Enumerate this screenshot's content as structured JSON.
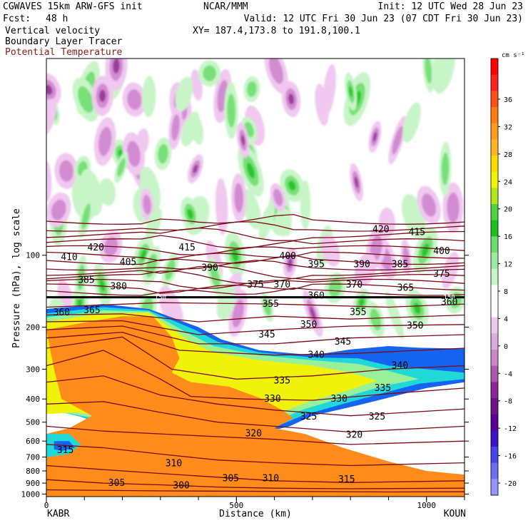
{
  "header": {
    "model": "CGWAVES 15km ARW-GFS init",
    "org": "NCAR/MMM",
    "init": "Init: 12 UTC Wed 28 Jun 23",
    "fcst_label": "Fcst:",
    "fcst_value": "48 h",
    "valid": "Valid: 12 UTC Fri 30 Jun 23 (07 CDT Fri 30 Jun 23)",
    "line_vertical_velocity": "Vertical velocity",
    "line_tracer": "Boundary Layer Tracer",
    "line_theta": "Potential Temperature",
    "xy": "XY= 187.4,173.8 to 191.8,100.1"
  },
  "colors": {
    "theta": "#7a0a14",
    "theta_label": "#8b1a1a",
    "tracer_orange": "#ff8c1a",
    "tracer_yellow": "#f0f20a",
    "tracer_green": "#98f098",
    "tracer_cyan": "#20d8d8",
    "tracer_blue": "#1464f0",
    "up_light": "#c8f5c8",
    "up_mid": "#78e078",
    "up_strong": "#28c828",
    "down_light": "#f0c8f0",
    "down_mid": "#d28cd2",
    "down_strong": "#9b3c9b"
  },
  "chart_data": {
    "type": "heatmap",
    "title": "Vertical velocity; Boundary Layer Tracer; Potential Temperature",
    "xlabel": "Distance (km)",
    "ylabel": "Pressure (hPa), log scale",
    "x_range_km": [
      0,
      1100
    ],
    "x_ticks": [
      0,
      500,
      1000
    ],
    "x_tick_labels": [
      "0",
      "500",
      "1000"
    ],
    "y_range_hpa": [
      1025,
      15
    ],
    "y_scale": "log",
    "y_ticks": [
      100,
      200,
      300,
      400,
      500,
      600,
      700,
      800,
      900,
      1000
    ],
    "y_tick_labels": [
      "100",
      "200",
      "300",
      "400",
      "500",
      "600",
      "700",
      "800",
      "900",
      "1000"
    ],
    "left_station": "KABR",
    "right_station": "KOUN",
    "colorbar": {
      "units": "cm s⁻¹",
      "tick_labels": [
        "36",
        "32",
        "28",
        "24",
        "20",
        "16",
        "12",
        "8",
        "4",
        "0",
        "-4",
        "-8",
        "-12",
        "-16",
        "-20"
      ],
      "colors": [
        "#ff0000",
        "#ff2020",
        "#ff5014",
        "#ff7a14",
        "#ff9a1e",
        "#ffb428",
        "#ffdc00",
        "#f0f20a",
        "#b4e61e",
        "#50d23c",
        "#1ebe1e",
        "#6edc6e",
        "#a0e8a0",
        "#c8f5c8",
        "#ffffff",
        "#ffffff",
        "#ecc8ec",
        "#dcaadc",
        "#c888c8",
        "#aa5aaa",
        "#8c2896",
        "#6e1488",
        "#5a0096",
        "#3c14c8",
        "#4646e6",
        "#6e6ef0",
        "#9696f8"
      ]
    },
    "tropopause_marker_hpa": 150,
    "tropopause_label": "150",
    "theta_contour_labels": [
      {
        "text": "420",
        "x_km": 130,
        "p_hpa": 93
      },
      {
        "text": "410",
        "x_km": 60,
        "p_hpa": 102
      },
      {
        "text": "405",
        "x_km": 215,
        "p_hpa": 107
      },
      {
        "text": "415",
        "x_km": 370,
        "p_hpa": 93
      },
      {
        "text": "385",
        "x_km": 105,
        "p_hpa": 127
      },
      {
        "text": "380",
        "x_km": 190,
        "p_hpa": 135
      },
      {
        "text": "390",
        "x_km": 430,
        "p_hpa": 113
      },
      {
        "text": "400",
        "x_km": 635,
        "p_hpa": 101
      },
      {
        "text": "395",
        "x_km": 710,
        "p_hpa": 109
      },
      {
        "text": "390",
        "x_km": 830,
        "p_hpa": 109
      },
      {
        "text": "385",
        "x_km": 930,
        "p_hpa": 109
      },
      {
        "text": "420",
        "x_km": 880,
        "p_hpa": 78
      },
      {
        "text": "415",
        "x_km": 975,
        "p_hpa": 80
      },
      {
        "text": "400",
        "x_km": 1040,
        "p_hpa": 96
      },
      {
        "text": "375",
        "x_km": 1040,
        "p_hpa": 120
      },
      {
        "text": "375",
        "x_km": 550,
        "p_hpa": 133
      },
      {
        "text": "370",
        "x_km": 620,
        "p_hpa": 133
      },
      {
        "text": "370",
        "x_km": 810,
        "p_hpa": 133
      },
      {
        "text": "365",
        "x_km": 945,
        "p_hpa": 137
      },
      {
        "text": "360",
        "x_km": 40,
        "p_hpa": 174
      },
      {
        "text": "365",
        "x_km": 120,
        "p_hpa": 170
      },
      {
        "text": "355",
        "x_km": 590,
        "p_hpa": 160
      },
      {
        "text": "360",
        "x_km": 710,
        "p_hpa": 148
      },
      {
        "text": "355",
        "x_km": 820,
        "p_hpa": 173
      },
      {
        "text": "360",
        "x_km": 1060,
        "p_hpa": 157
      },
      {
        "text": "350",
        "x_km": 690,
        "p_hpa": 195
      },
      {
        "text": "350",
        "x_km": 970,
        "p_hpa": 197
      },
      {
        "text": "345",
        "x_km": 580,
        "p_hpa": 215
      },
      {
        "text": "345",
        "x_km": 780,
        "p_hpa": 230
      },
      {
        "text": "340",
        "x_km": 710,
        "p_hpa": 262
      },
      {
        "text": "340",
        "x_km": 930,
        "p_hpa": 290
      },
      {
        "text": "335",
        "x_km": 620,
        "p_hpa": 335
      },
      {
        "text": "335",
        "x_km": 885,
        "p_hpa": 360
      },
      {
        "text": "330",
        "x_km": 595,
        "p_hpa": 400
      },
      {
        "text": "330",
        "x_km": 770,
        "p_hpa": 400
      },
      {
        "text": "325",
        "x_km": 690,
        "p_hpa": 475
      },
      {
        "text": "325",
        "x_km": 870,
        "p_hpa": 475
      },
      {
        "text": "320",
        "x_km": 545,
        "p_hpa": 558
      },
      {
        "text": "320",
        "x_km": 810,
        "p_hpa": 565
      },
      {
        "text": "315",
        "x_km": 50,
        "p_hpa": 655
      },
      {
        "text": "310",
        "x_km": 335,
        "p_hpa": 745
      },
      {
        "text": "310",
        "x_km": 590,
        "p_hpa": 860
      },
      {
        "text": "315",
        "x_km": 790,
        "p_hpa": 870
      },
      {
        "text": "305",
        "x_km": 185,
        "p_hpa": 900
      },
      {
        "text": "305",
        "x_km": 485,
        "p_hpa": 860
      },
      {
        "text": "300",
        "x_km": 355,
        "p_hpa": 920
      }
    ]
  }
}
